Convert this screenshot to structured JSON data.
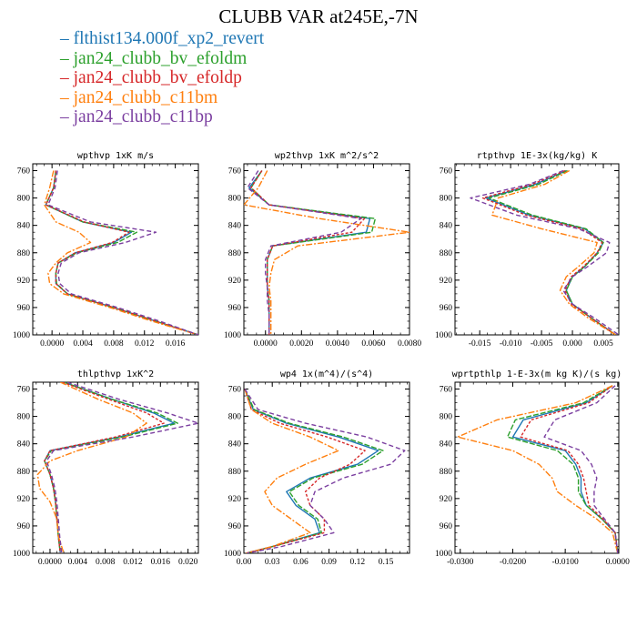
{
  "title": "CLUBB VAR at245E,-7N",
  "legend": [
    {
      "label": "flthist134.000f_xp2_revert",
      "color": "#1f77b4",
      "dash": ""
    },
    {
      "label": "jan24_clubb_bv_efoldm",
      "color": "#2ca02c",
      "dash": "6,2"
    },
    {
      "label": "jan24_clubb_bv_efoldp",
      "color": "#d62728",
      "dash": "3,2"
    },
    {
      "label": "jan24_clubb_c11bm",
      "color": "#ff7f0e",
      "dash": "7,2,2,2"
    },
    {
      "label": "jan24_clubb_c11bp",
      "color": "#7b3fa0",
      "dash": "5,3"
    }
  ],
  "chart_data": [
    {
      "type": "line",
      "title": "wpthvp  1xK m/s",
      "xlim": [
        -0.0025,
        0.019
      ],
      "ylim": [
        1000,
        750
      ],
      "xticks": [
        0,
        0.004,
        0.008,
        0.012,
        0.016
      ],
      "xtick_labels": [
        "0.0000",
        "0.004",
        "0.008",
        "0.012",
        "0.016"
      ],
      "yticks": [
        760,
        800,
        840,
        880,
        920,
        960,
        1000
      ],
      "y": [
        760,
        785,
        810,
        835,
        850,
        865,
        880,
        895,
        910,
        925,
        940,
        960,
        980,
        1000
      ],
      "series": [
        {
          "name": "flthist134.000f_xp2_revert",
          "values": [
            0.0005,
            0.0002,
            -0.0008,
            0.004,
            0.0103,
            0.008,
            0.003,
            0.0008,
            0.0005,
            0.0005,
            0.002,
            0.008,
            0.0135,
            0.019
          ]
        },
        {
          "name": "jan24_clubb_bv_efoldm",
          "values": [
            0.0005,
            0.0002,
            -0.0008,
            0.004,
            0.011,
            0.0085,
            0.0032,
            0.0008,
            0.0005,
            0.0006,
            0.002,
            0.008,
            0.0135,
            0.019
          ]
        },
        {
          "name": "jan24_clubb_bv_efoldp",
          "values": [
            0.0005,
            0.0002,
            -0.0008,
            0.0042,
            0.01,
            0.0078,
            0.003,
            0.0008,
            0.0005,
            0.0005,
            0.002,
            0.008,
            0.0135,
            0.019
          ]
        },
        {
          "name": "jan24_clubb_c11bm",
          "values": [
            0.0002,
            -0.0003,
            -0.001,
            0.0005,
            0.0035,
            0.005,
            0.002,
            0.0005,
            -0.0005,
            -0.0003,
            0.0015,
            0.0075,
            0.013,
            0.019
          ]
        },
        {
          "name": "jan24_clubb_c11bp",
          "values": [
            0.0007,
            0.0004,
            -0.0005,
            0.005,
            0.0135,
            0.0095,
            0.0035,
            0.0012,
            0.0008,
            0.001,
            0.0025,
            0.0085,
            0.014,
            0.019
          ]
        }
      ]
    },
    {
      "type": "line",
      "title": "wp2thvp  1xK m^2/s^2",
      "xlim": [
        -0.0012,
        0.008
      ],
      "ylim": [
        1000,
        750
      ],
      "xticks": [
        0,
        0.002,
        0.004,
        0.006,
        0.008
      ],
      "xtick_labels": [
        "0.0000",
        "0.0020",
        "0.0040",
        "0.0060",
        "0.0080"
      ],
      "yticks": [
        760,
        800,
        840,
        880,
        920,
        960,
        1000
      ],
      "y": [
        760,
        785,
        810,
        830,
        850,
        870,
        890,
        910,
        930,
        950,
        970,
        1000
      ],
      "series": [
        {
          "name": "flthist134.000f_xp2_revert",
          "values": [
            -0.0002,
            -0.0009,
            0.0002,
            0.0058,
            0.0056,
            0.0004,
            0.0001,
            0.0001,
            0.0001,
            0.0002,
            0.0002,
            0.0002
          ]
        },
        {
          "name": "jan24_clubb_bv_efoldm",
          "values": [
            -0.0002,
            -0.0008,
            0.0002,
            0.0061,
            0.0059,
            0.0004,
            0.0001,
            0.0001,
            0.0001,
            0.0002,
            0.0002,
            0.0002
          ]
        },
        {
          "name": "jan24_clubb_bv_efoldp",
          "values": [
            -0.0002,
            -0.0008,
            0.0002,
            0.0055,
            0.0048,
            0.0004,
            0.0001,
            0.0001,
            0.0001,
            0.0002,
            0.0002,
            0.0002
          ]
        },
        {
          "name": "jan24_clubb_c11bm",
          "values": [
            0.0001,
            -0.0004,
            -0.0012,
            0.003,
            0.008,
            0.0018,
            0.0005,
            0.0003,
            0.0002,
            0.0003,
            0.0003,
            0.0003
          ]
        },
        {
          "name": "jan24_clubb_c11bp",
          "values": [
            -0.0004,
            -0.001,
            0.0002,
            0.0053,
            0.0042,
            0.0003,
            0.0,
            0.0,
            0.0001,
            0.0001,
            0.0002,
            0.0002
          ]
        }
      ]
    },
    {
      "type": "line",
      "title": "rtpthvp  1E-3x(kg/kg) K",
      "xlim": [
        -0.019,
        0.0075
      ],
      "ylim": [
        1000,
        750
      ],
      "xticks": [
        -0.015,
        -0.01,
        -0.005,
        0,
        0.005
      ],
      "xtick_labels": [
        "-0.015",
        "-0.010",
        "-0.005",
        "0.000",
        "0.005"
      ],
      "yticks": [
        760,
        800,
        840,
        880,
        920,
        960,
        1000
      ],
      "y": [
        760,
        780,
        800,
        825,
        845,
        865,
        880,
        900,
        915,
        935,
        955,
        975,
        1000
      ],
      "series": [
        {
          "name": "flthist134.000f_xp2_revert",
          "values": [
            -0.001,
            -0.006,
            -0.014,
            -0.007,
            0.002,
            0.005,
            0.004,
            0.002,
            0.0,
            -0.001,
            0.0,
            0.003,
            0.007
          ]
        },
        {
          "name": "jan24_clubb_bv_efoldm",
          "values": [
            -0.0008,
            -0.0055,
            -0.0135,
            -0.0065,
            0.0022,
            0.005,
            0.0042,
            0.002,
            0.0,
            -0.001,
            0.0,
            0.003,
            0.007
          ]
        },
        {
          "name": "jan24_clubb_bv_efoldp",
          "values": [
            -0.0012,
            -0.0065,
            -0.0145,
            -0.0075,
            0.0015,
            0.0048,
            0.004,
            0.0018,
            -0.0002,
            -0.0012,
            -0.0002,
            0.003,
            0.007
          ]
        },
        {
          "name": "jan24_clubb_c11bm",
          "values": [
            -0.0005,
            -0.0045,
            -0.012,
            -0.013,
            -0.005,
            0.004,
            0.0035,
            0.001,
            -0.001,
            -0.002,
            -0.0005,
            0.0025,
            0.007
          ]
        },
        {
          "name": "jan24_clubb_c11bp",
          "values": [
            -0.0015,
            -0.007,
            -0.0165,
            -0.009,
            0.001,
            0.006,
            0.0055,
            0.0025,
            0.0,
            -0.0015,
            0.0,
            0.0035,
            0.0075
          ]
        }
      ]
    },
    {
      "type": "line",
      "title": "thlpthvp  1xK^2",
      "xlim": [
        -0.0025,
        0.0215
      ],
      "ylim": [
        1000,
        750
      ],
      "xticks": [
        0,
        0.004,
        0.008,
        0.012,
        0.016,
        0.02
      ],
      "xtick_labels": [
        "0.0000",
        "0.004",
        "0.008",
        "0.012",
        "0.016",
        "0.020"
      ],
      "yticks": [
        760,
        800,
        840,
        880,
        920,
        960,
        1000
      ],
      "y": [
        750,
        775,
        795,
        810,
        830,
        850,
        865,
        885,
        905,
        925,
        950,
        975,
        1000
      ],
      "series": [
        {
          "name": "flthist134.000f_xp2_revert",
          "values": [
            0.002,
            0.009,
            0.015,
            0.018,
            0.01,
            0.0,
            -0.0008,
            0.0,
            0.0005,
            0.0008,
            0.001,
            0.0012,
            0.0015
          ]
        },
        {
          "name": "jan24_clubb_bv_efoldm",
          "values": [
            0.002,
            0.009,
            0.0155,
            0.0185,
            0.0105,
            0.0002,
            -0.0008,
            0.0,
            0.0005,
            0.0008,
            0.001,
            0.0012,
            0.0015
          ]
        },
        {
          "name": "jan24_clubb_bv_efoldp",
          "values": [
            0.0018,
            0.0085,
            0.014,
            0.0165,
            0.0095,
            0.0,
            -0.0008,
            0.0,
            0.0005,
            0.0008,
            0.001,
            0.0012,
            0.0015
          ]
        },
        {
          "name": "jan24_clubb_c11bm",
          "values": [
            0.0015,
            0.007,
            0.012,
            0.014,
            0.011,
            0.004,
            0.0,
            -0.0018,
            -0.0015,
            0.0,
            0.001,
            0.0012,
            0.002
          ]
        },
        {
          "name": "jan24_clubb_c11bp",
          "values": [
            0.0025,
            0.01,
            0.017,
            0.0215,
            0.012,
            0.0005,
            -0.0005,
            0.0002,
            0.0007,
            0.001,
            0.0012,
            0.0014,
            0.0017
          ]
        }
      ]
    },
    {
      "type": "line",
      "title": "wp4  1x(m^4)/(s^4)",
      "xlim": [
        0,
        0.175
      ],
      "ylim": [
        1000,
        750
      ],
      "xticks": [
        0,
        0.03,
        0.06,
        0.09,
        0.12,
        0.15
      ],
      "xtick_labels": [
        "0.00",
        "0.03",
        "0.06",
        "0.09",
        "0.12",
        "0.15"
      ],
      "yticks": [
        760,
        800,
        840,
        880,
        920,
        960,
        1000
      ],
      "y": [
        760,
        790,
        810,
        830,
        850,
        870,
        890,
        910,
        930,
        950,
        970,
        990,
        1000
      ],
      "series": [
        {
          "name": "flthist134.000f_xp2_revert",
          "values": [
            0.001,
            0.01,
            0.045,
            0.1,
            0.142,
            0.12,
            0.07,
            0.045,
            0.055,
            0.075,
            0.08,
            0.03,
            0.002
          ]
        },
        {
          "name": "jan24_clubb_bv_efoldm",
          "values": [
            0.001,
            0.011,
            0.048,
            0.105,
            0.147,
            0.125,
            0.073,
            0.048,
            0.058,
            0.078,
            0.082,
            0.031,
            0.002
          ]
        },
        {
          "name": "jan24_clubb_bv_efoldp",
          "values": [
            0.001,
            0.008,
            0.038,
            0.088,
            0.128,
            0.112,
            0.08,
            0.065,
            0.07,
            0.085,
            0.085,
            0.031,
            0.002
          ]
        },
        {
          "name": "jan24_clubb_c11bm",
          "values": [
            0.001,
            0.008,
            0.03,
            0.07,
            0.1,
            0.065,
            0.035,
            0.022,
            0.03,
            0.05,
            0.07,
            0.03,
            0.002
          ]
        },
        {
          "name": "jan24_clubb_c11bp",
          "values": [
            0.001,
            0.015,
            0.065,
            0.13,
            0.17,
            0.155,
            0.105,
            0.075,
            0.07,
            0.085,
            0.095,
            0.04,
            0.003
          ]
        }
      ]
    },
    {
      "type": "line",
      "title": "wprtpthlp  1-E-3x(m kg K)/(s kg)",
      "xlim": [
        -0.031,
        0.0002
      ],
      "ylim": [
        1000,
        750
      ],
      "xticks": [
        -0.03,
        -0.02,
        -0.01,
        0
      ],
      "xtick_labels": [
        "-0.0300",
        "-0.0200",
        "-0.0100",
        "0.0000"
      ],
      "yticks": [
        760,
        800,
        840,
        880,
        920,
        960,
        1000
      ],
      "y": [
        755,
        780,
        805,
        830,
        850,
        870,
        890,
        910,
        930,
        950,
        970,
        1000
      ],
      "series": [
        {
          "name": "flthist134.000f_xp2_revert",
          "values": [
            -0.001,
            -0.006,
            -0.018,
            -0.02,
            -0.01,
            -0.008,
            -0.007,
            -0.007,
            -0.006,
            -0.003,
            -0.0005,
            0.0
          ]
        },
        {
          "name": "jan24_clubb_bv_efoldm",
          "values": [
            -0.001,
            -0.0065,
            -0.0195,
            -0.021,
            -0.0115,
            -0.0085,
            -0.0075,
            -0.0075,
            -0.006,
            -0.003,
            -0.0005,
            0.0
          ]
        },
        {
          "name": "jan24_clubb_bv_efoldp",
          "values": [
            -0.001,
            -0.0055,
            -0.0165,
            -0.0185,
            -0.0095,
            -0.0075,
            -0.0065,
            -0.006,
            -0.0055,
            -0.0028,
            -0.0005,
            0.0
          ]
        },
        {
          "name": "jan24_clubb_c11bm",
          "values": [
            -0.001,
            -0.008,
            -0.023,
            -0.0305,
            -0.02,
            -0.015,
            -0.0125,
            -0.0115,
            -0.008,
            -0.004,
            -0.001,
            0.0
          ]
        },
        {
          "name": "jan24_clubb_c11bp",
          "values": [
            -0.0005,
            -0.004,
            -0.012,
            -0.014,
            -0.007,
            -0.005,
            -0.004,
            -0.0045,
            -0.0045,
            -0.0025,
            -0.0005,
            0.0
          ]
        }
      ]
    }
  ]
}
